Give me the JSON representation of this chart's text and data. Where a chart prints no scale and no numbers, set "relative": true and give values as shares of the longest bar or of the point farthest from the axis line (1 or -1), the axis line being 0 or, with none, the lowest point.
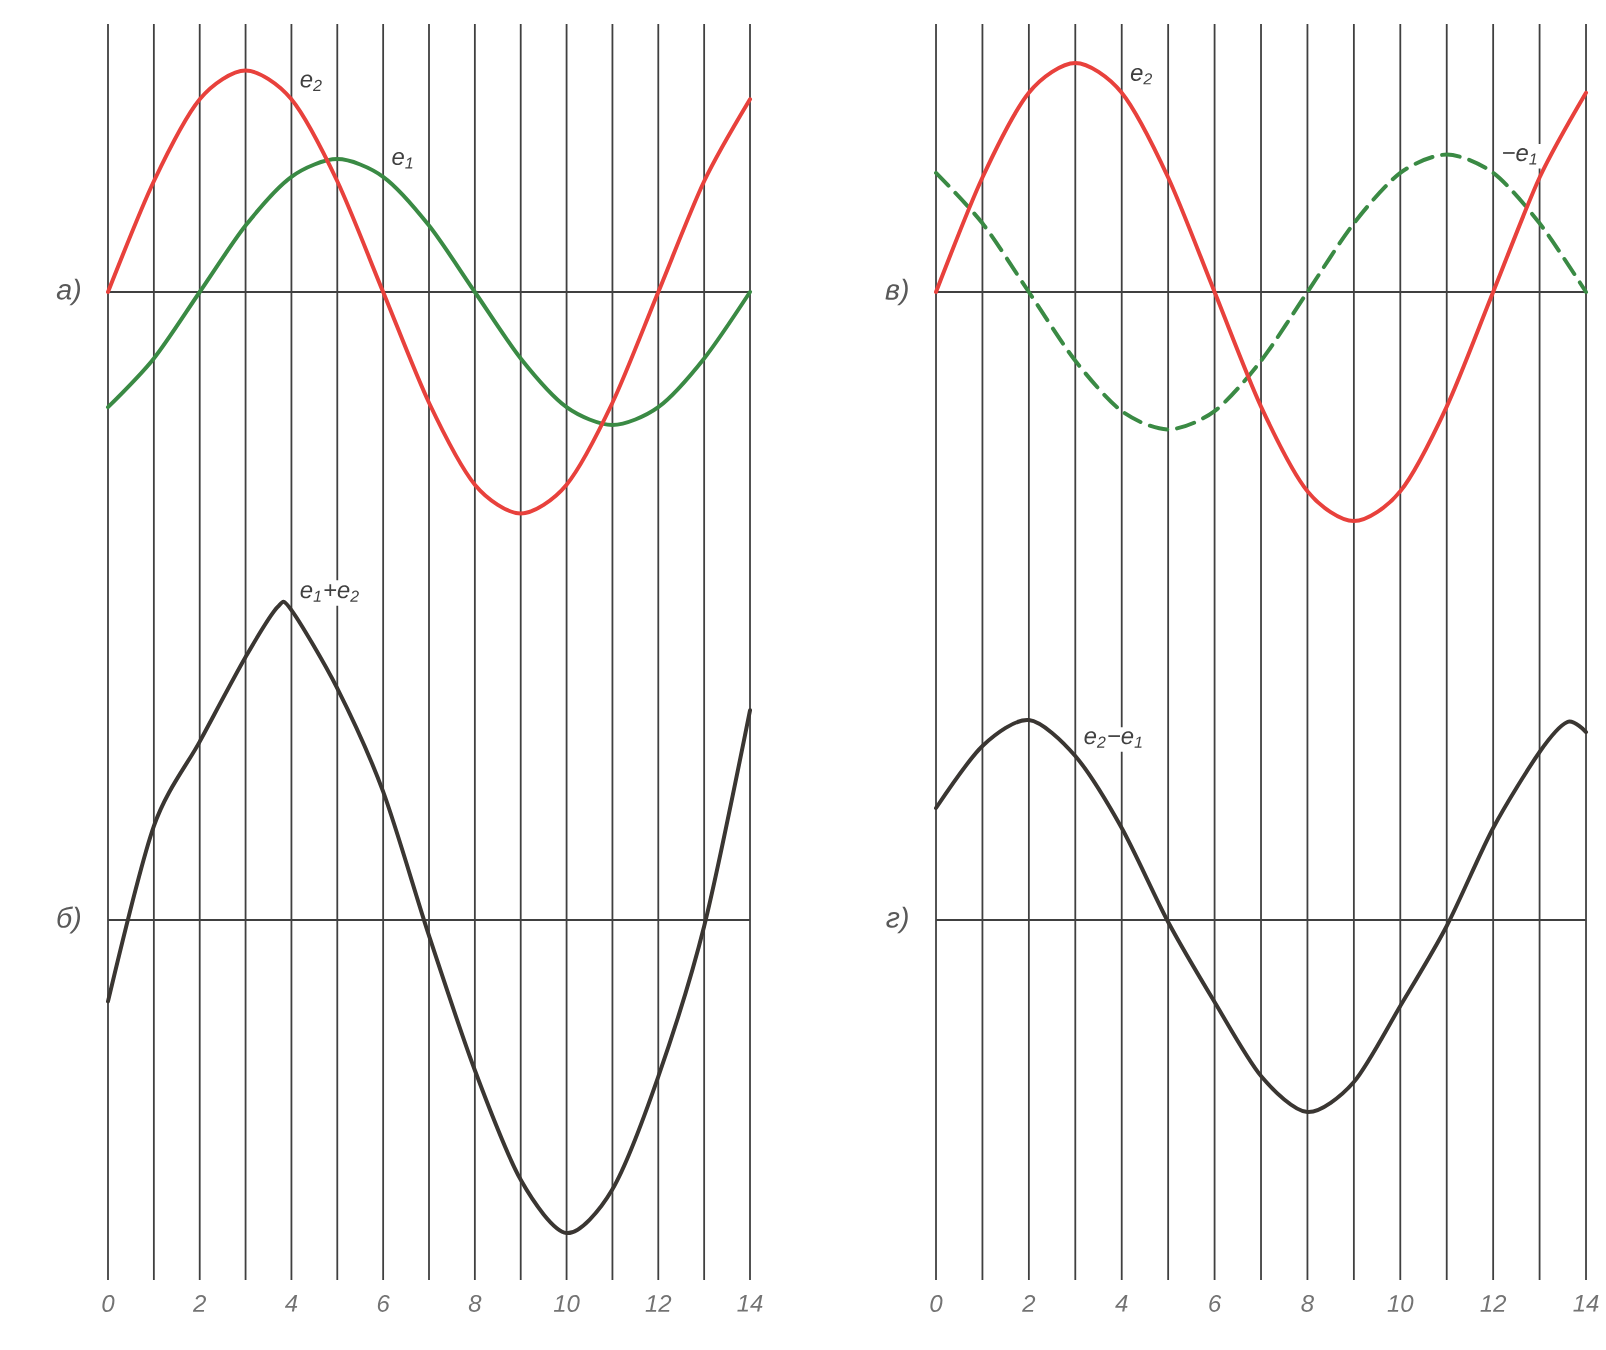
{
  "chart_data": [
    {
      "type": "line",
      "relative": true,
      "ylabel": "а)",
      "x": [
        0,
        1,
        2,
        3,
        4,
        5,
        6,
        7,
        8,
        9,
        10,
        11,
        12,
        13,
        14
      ],
      "xlim": [
        0,
        14
      ],
      "xticks": [
        0,
        {
          "value": 1,
          "label": null
        },
        2,
        {
          "value": 3,
          "label": null
        },
        4,
        {
          "value": 5,
          "label": null
        },
        6,
        {
          "value": 7,
          "label": null
        },
        8,
        {
          "value": 9,
          "label": null
        },
        10,
        {
          "value": 11,
          "label": null
        },
        12,
        {
          "value": 13,
          "label": null
        },
        14
      ],
      "tick_labels": false,
      "grid": "x",
      "series": [
        {
          "name": "e$_{1}$",
          "color": "#3a8a44",
          "values": [
            -0.52,
            -0.3,
            0,
            0.3,
            0.52,
            0.6,
            0.52,
            0.3,
            0,
            -0.3,
            -0.52,
            -0.6,
            -0.52,
            -0.3,
            0
          ]
        },
        {
          "name": "e$_{2}$",
          "color": "#e8413c",
          "values": [
            0,
            0.5,
            0.87,
            1,
            0.87,
            0.5,
            0,
            -0.5,
            -0.87,
            -1,
            -0.87,
            -0.5,
            0,
            0.5,
            0.87
          ]
        }
      ]
    },
    {
      "type": "line",
      "relative": true,
      "ylabel": "б)",
      "x": [
        0,
        1,
        2,
        3,
        3.7,
        4,
        5,
        6,
        7,
        8,
        9,
        10,
        11,
        12,
        13,
        14
      ],
      "xlim": [
        0,
        14
      ],
      "xticks": [
        0,
        {
          "value": 1,
          "label": null
        },
        2,
        {
          "value": 3,
          "label": null
        },
        4,
        {
          "value": 5,
          "label": null
        },
        6,
        {
          "value": 7,
          "label": null
        },
        8,
        {
          "value": 9,
          "label": null
        },
        10,
        {
          "value": 11,
          "label": null
        },
        12,
        {
          "value": 13,
          "label": null
        },
        14
      ],
      "tick_labels": "x",
      "grid": "x",
      "series": [
        {
          "name": "e$_{1}$+e$_{2}$",
          "color": "#3a3632",
          "values": [
            -0.26,
            0.3,
            0.57,
            0.84,
            1,
            0.99,
            0.74,
            0.41,
            -0.05,
            -0.48,
            -0.83,
            -1,
            -0.86,
            -0.5,
            -0.02,
            0.67
          ]
        }
      ]
    },
    {
      "type": "line",
      "relative": true,
      "ylabel": "в)",
      "x": [
        0,
        1,
        2,
        3,
        4,
        5,
        6,
        7,
        8,
        9,
        10,
        11,
        12,
        13,
        14
      ],
      "xlim": [
        0,
        14
      ],
      "xticks": [
        0,
        {
          "value": 1,
          "label": null
        },
        2,
        {
          "value": 3,
          "label": null
        },
        4,
        {
          "value": 5,
          "label": null
        },
        6,
        {
          "value": 7,
          "label": null
        },
        8,
        {
          "value": 9,
          "label": null
        },
        10,
        {
          "value": 11,
          "label": null
        },
        12,
        {
          "value": 13,
          "label": null
        },
        14
      ],
      "tick_labels": false,
      "grid": "x",
      "series": [
        {
          "name": "−e$_{1}$",
          "color": "#3a8a44",
          "line_style": "dashed",
          "values": [
            0.52,
            0.3,
            0,
            -0.3,
            -0.52,
            -0.6,
            -0.52,
            -0.3,
            0,
            0.3,
            0.52,
            0.6,
            0.52,
            0.3,
            0
          ]
        },
        {
          "name": "e$_{2}$",
          "color": "#e8413c",
          "values": [
            0,
            0.5,
            0.87,
            1,
            0.87,
            0.5,
            0,
            -0.5,
            -0.87,
            -1,
            -0.87,
            -0.5,
            0,
            0.5,
            0.87
          ]
        }
      ]
    },
    {
      "type": "line",
      "relative": true,
      "ylabel": "г)",
      "x": [
        0,
        1,
        2,
        3,
        4,
        5,
        6,
        7,
        8,
        9,
        10,
        11,
        12,
        13,
        13.6,
        14
      ],
      "xlim": [
        0,
        14
      ],
      "xticks": [
        0,
        {
          "value": 1,
          "label": null
        },
        2,
        {
          "value": 3,
          "label": null
        },
        4,
        {
          "value": 5,
          "label": null
        },
        6,
        {
          "value": 7,
          "label": null
        },
        8,
        {
          "value": 9,
          "label": null
        },
        10,
        {
          "value": 11,
          "label": null
        },
        12,
        {
          "value": 13,
          "label": null
        },
        14
      ],
      "tick_labels": "x",
      "grid": "x",
      "series": [
        {
          "name": "e$_{2}$−e$_{1}$",
          "color": "#3a3632",
          "values": [
            0.56,
            0.87,
            1,
            0.82,
            0.46,
            -0.01,
            -0.41,
            -0.78,
            -0.96,
            -0.81,
            -0.43,
            -0.03,
            0.46,
            0.84,
            0.99,
            0.94
          ]
        }
      ]
    }
  ]
}
